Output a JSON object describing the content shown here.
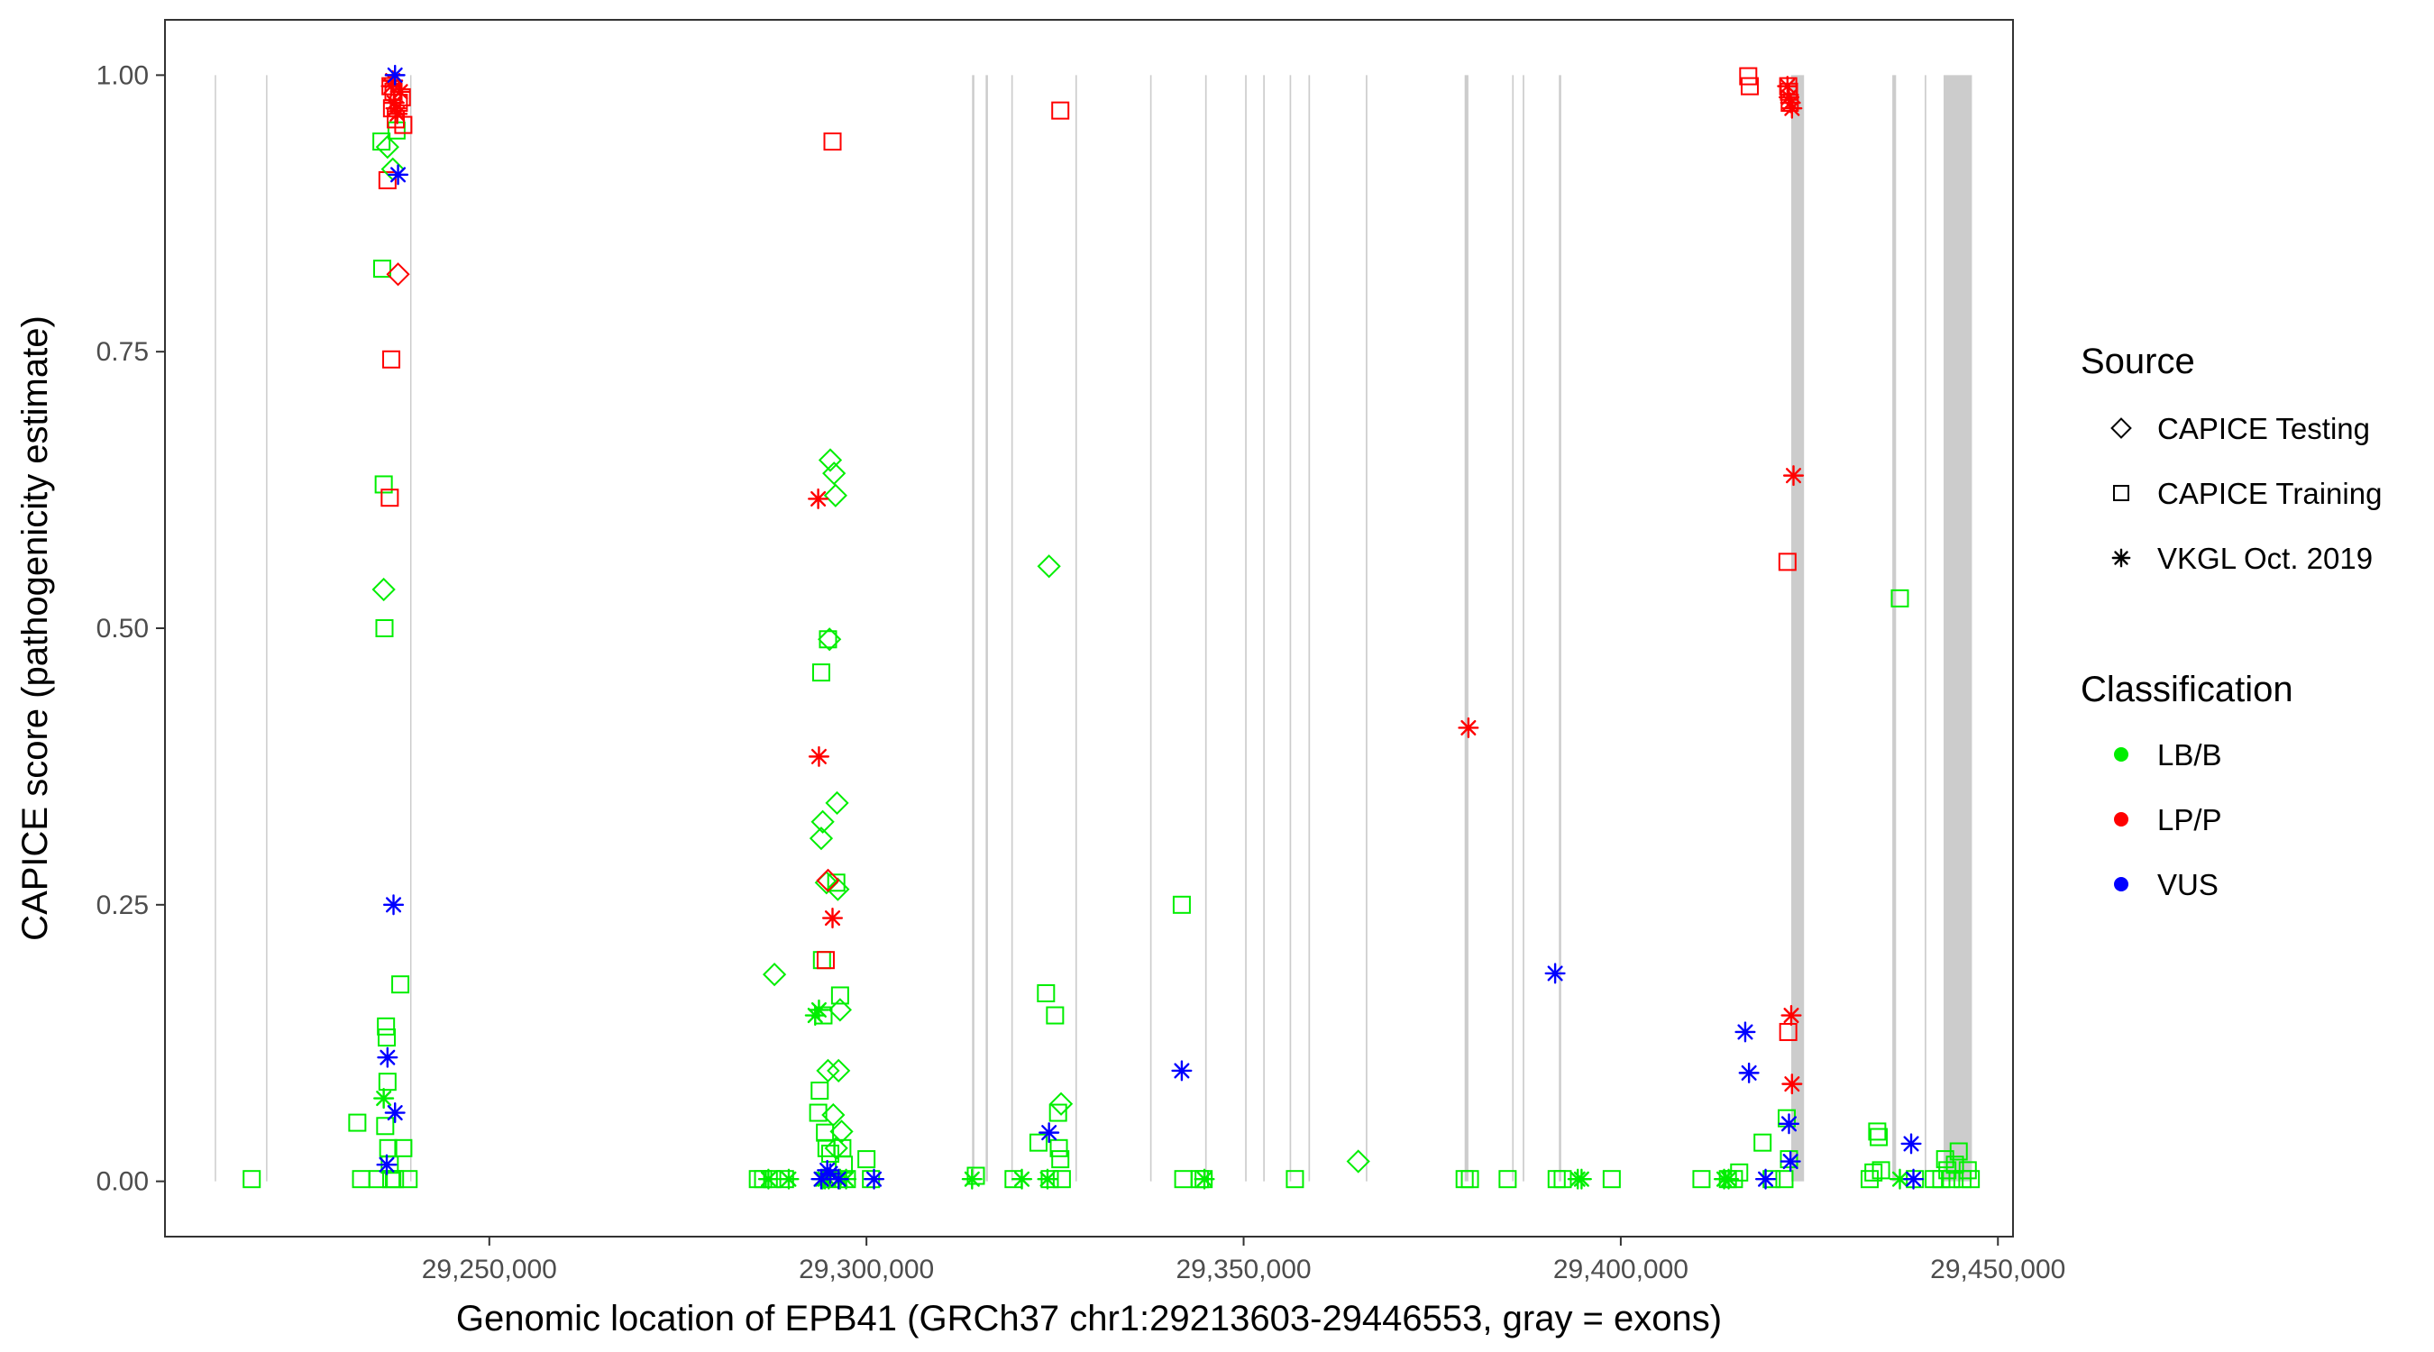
{
  "chart_data": {
    "type": "scatter",
    "xlabel": "Genomic location of EPB41 (GRCh37 chr1:29213603-29446553, gray = exons)",
    "ylabel": "CAPICE score (pathogenicity estimate)",
    "xlim": [
      29207000,
      29452000
    ],
    "ylim": [
      -0.05,
      1.05
    ],
    "x_ticks": [
      29250000,
      29300000,
      29350000,
      29400000,
      29450000
    ],
    "x_tick_labels": [
      "29,250,000",
      "29,300,000",
      "29,350,000",
      "29,400,000",
      "29,450,000"
    ],
    "y_ticks": [
      0,
      0.25,
      0.5,
      0.75,
      1.0
    ],
    "y_tick_labels": [
      "0.00",
      "0.25",
      "0.50",
      "0.75",
      "1.00"
    ],
    "grid": false,
    "legend_position": "right",
    "exon_color": "#cccccc",
    "exons": [
      [
        29213600,
        29213780
      ],
      [
        29220400,
        29220580
      ],
      [
        29239500,
        29239680
      ],
      [
        29314000,
        29314300
      ],
      [
        29315800,
        29316100
      ],
      [
        29319200,
        29319400
      ],
      [
        29327700,
        29327900
      ],
      [
        29337600,
        29337800
      ],
      [
        29344900,
        29345100
      ],
      [
        29350200,
        29350400
      ],
      [
        29352600,
        29352800
      ],
      [
        29356100,
        29356300
      ],
      [
        29358600,
        29358800
      ],
      [
        29366200,
        29366400
      ],
      [
        29379300,
        29379800
      ],
      [
        29385600,
        29385800
      ],
      [
        29387000,
        29387200
      ],
      [
        29391800,
        29392100
      ],
      [
        29422600,
        29424300
      ],
      [
        29436000,
        29436500
      ],
      [
        29440300,
        29440500
      ],
      [
        29442800,
        29446553
      ]
    ],
    "legend": {
      "source_title": "Source",
      "source_entries": [
        {
          "label": "CAPICE Testing",
          "shape": "diamond"
        },
        {
          "label": "CAPICE Training",
          "shape": "square"
        },
        {
          "label": "VKGL Oct. 2019",
          "shape": "asterisk"
        }
      ],
      "class_title": "Classification",
      "class_entries": [
        {
          "label": "LB/B",
          "color": "#00ee00"
        },
        {
          "label": "LP/P",
          "color": "#ff0000"
        },
        {
          "label": "VUS",
          "color": "#0000ff"
        }
      ]
    },
    "series": [
      {
        "shape": "square",
        "class": "LB/B",
        "points": [
          [
            29218500,
            0.002
          ],
          [
            29232500,
            0.053
          ],
          [
            29233000,
            0.002
          ],
          [
            29235200,
            0.002
          ],
          [
            29235700,
            0.94
          ],
          [
            29235800,
            0.825
          ],
          [
            29236000,
            0.63
          ],
          [
            29236100,
            0.5
          ],
          [
            29236300,
            0.14
          ],
          [
            29236400,
            0.13
          ],
          [
            29236500,
            0.09
          ],
          [
            29236200,
            0.05
          ],
          [
            29236600,
            0.03
          ],
          [
            29236800,
            0.015
          ],
          [
            29237000,
            0.002
          ],
          [
            29237500,
            0.002
          ],
          [
            29237700,
            0.95
          ],
          [
            29238200,
            0.178
          ],
          [
            29238600,
            0.03
          ],
          [
            29239300,
            0.002
          ],
          [
            29285600,
            0.002
          ],
          [
            29286300,
            0.002
          ],
          [
            29287500,
            0.002
          ],
          [
            29289200,
            0.002
          ],
          [
            29293600,
            0.062
          ],
          [
            29293800,
            0.082
          ],
          [
            29294000,
            0.46
          ],
          [
            29294100,
            0.2
          ],
          [
            29294300,
            0.15
          ],
          [
            29294500,
            0.044
          ],
          [
            29294700,
            0.03
          ],
          [
            29294900,
            0.49
          ],
          [
            29295200,
            0.025
          ],
          [
            29295500,
            0.002
          ],
          [
            29296000,
            0.27
          ],
          [
            29296500,
            0.168
          ],
          [
            29296800,
            0.03
          ],
          [
            29297000,
            0.015
          ],
          [
            29297400,
            0.002
          ],
          [
            29300000,
            0.02
          ],
          [
            29300600,
            0.002
          ],
          [
            29314500,
            0.005
          ],
          [
            29319500,
            0.002
          ],
          [
            29322800,
            0.035
          ],
          [
            29323800,
            0.17
          ],
          [
            29324300,
            0.002
          ],
          [
            29325000,
            0.15
          ],
          [
            29325400,
            0.062
          ],
          [
            29325500,
            0.03
          ],
          [
            29325700,
            0.02
          ],
          [
            29325900,
            0.002
          ],
          [
            29341800,
            0.25
          ],
          [
            29342000,
            0.002
          ],
          [
            29344200,
            0.002
          ],
          [
            29344700,
            0.002
          ],
          [
            29356800,
            0.002
          ],
          [
            29379300,
            0.002
          ],
          [
            29380000,
            0.002
          ],
          [
            29385000,
            0.002
          ],
          [
            29391500,
            0.002
          ],
          [
            29392300,
            0.002
          ],
          [
            29398800,
            0.002
          ],
          [
            29410700,
            0.002
          ],
          [
            29414200,
            0.002
          ],
          [
            29415000,
            0.002
          ],
          [
            29415700,
            0.008
          ],
          [
            29418800,
            0.035
          ],
          [
            29420000,
            0.002
          ],
          [
            29421700,
            0.002
          ],
          [
            29422000,
            0.057
          ],
          [
            29422300,
            0.02
          ],
          [
            29433000,
            0.002
          ],
          [
            29433500,
            0.008
          ],
          [
            29434000,
            0.045
          ],
          [
            29434200,
            0.04
          ],
          [
            29434500,
            0.01
          ],
          [
            29437000,
            0.527
          ],
          [
            29439000,
            0.002
          ],
          [
            29441500,
            0.002
          ],
          [
            29442500,
            0.002
          ],
          [
            29443000,
            0.02
          ],
          [
            29443300,
            0.01
          ],
          [
            29443800,
            0.002
          ],
          [
            29444300,
            0.015
          ],
          [
            29444800,
            0.027
          ],
          [
            29445300,
            0.002
          ],
          [
            29446000,
            0.01
          ],
          [
            29446400,
            0.002
          ]
        ]
      },
      {
        "shape": "square",
        "class": "LP/P",
        "points": [
          [
            29236500,
            0.905
          ],
          [
            29236800,
            0.618
          ],
          [
            29237000,
            0.743
          ],
          [
            29236900,
            0.99
          ],
          [
            29237100,
            0.97
          ],
          [
            29237300,
            0.985
          ],
          [
            29237600,
            0.96
          ],
          [
            29238000,
            0.975
          ],
          [
            29238400,
            0.98
          ],
          [
            29238600,
            0.955
          ],
          [
            29295500,
            0.94
          ],
          [
            29294600,
            0.2
          ],
          [
            29325700,
            0.968
          ],
          [
            29416900,
            0.999
          ],
          [
            29417100,
            0.99
          ],
          [
            29422200,
            0.99
          ],
          [
            29422300,
            0.985
          ],
          [
            29422400,
            0.975
          ],
          [
            29422100,
            0.56
          ],
          [
            29422200,
            0.135
          ]
        ]
      },
      {
        "shape": "diamond",
        "class": "LB/B",
        "points": [
          [
            29236000,
            0.535
          ],
          [
            29236500,
            0.935
          ],
          [
            29237200,
            0.915
          ],
          [
            29287800,
            0.187
          ],
          [
            29294200,
            0.325
          ],
          [
            29294000,
            0.31
          ],
          [
            29294700,
            0.27
          ],
          [
            29294900,
            0.1
          ],
          [
            29295100,
            0.49
          ],
          [
            29295200,
            0.652
          ],
          [
            29295600,
            0.06
          ],
          [
            29295700,
            0.64
          ],
          [
            29295900,
            0.62
          ],
          [
            29296000,
            0.03
          ],
          [
            29296100,
            0.342
          ],
          [
            29296200,
            0.264
          ],
          [
            29296300,
            0.1
          ],
          [
            29296500,
            0.155
          ],
          [
            29296700,
            0.045
          ],
          [
            29324200,
            0.556
          ],
          [
            29325800,
            0.07
          ],
          [
            29365200,
            0.018
          ]
        ]
      },
      {
        "shape": "diamond",
        "class": "LP/P",
        "points": [
          [
            29237900,
            0.82
          ],
          [
            29294900,
            0.272
          ]
        ]
      },
      {
        "shape": "asterisk",
        "class": "LB/B",
        "points": [
          [
            29236000,
            0.075
          ],
          [
            29293200,
            0.15
          ],
          [
            29293700,
            0.155
          ],
          [
            29287000,
            0.002
          ],
          [
            29289700,
            0.002
          ],
          [
            29294200,
            0.002
          ],
          [
            29294500,
            0.002
          ],
          [
            29295000,
            0.002
          ],
          [
            29296500,
            0.002
          ],
          [
            29297300,
            0.002
          ],
          [
            29314000,
            0.002
          ],
          [
            29320600,
            0.002
          ],
          [
            29324000,
            0.002
          ],
          [
            29344800,
            0.002
          ],
          [
            29394300,
            0.002
          ],
          [
            29394800,
            0.002
          ],
          [
            29413700,
            0.002
          ],
          [
            29414300,
            0.002
          ],
          [
            29437000,
            0.002
          ]
        ]
      },
      {
        "shape": "asterisk",
        "class": "LP/P",
        "points": [
          [
            29237000,
            0.99
          ],
          [
            29237200,
            0.995
          ],
          [
            29237400,
            0.975
          ],
          [
            29237600,
            0.97
          ],
          [
            29237800,
            0.965
          ],
          [
            29238200,
            0.985
          ],
          [
            29293600,
            0.617
          ],
          [
            29293700,
            0.384
          ],
          [
            29295500,
            0.238
          ],
          [
            29379800,
            0.41
          ],
          [
            29422100,
            0.99
          ],
          [
            29422300,
            0.98
          ],
          [
            29422500,
            0.975
          ],
          [
            29422700,
            0.97
          ],
          [
            29422900,
            0.638
          ],
          [
            29422600,
            0.15
          ],
          [
            29422700,
            0.088
          ]
        ]
      },
      {
        "shape": "asterisk",
        "class": "VUS",
        "points": [
          [
            29237500,
            1.0
          ],
          [
            29237300,
            0.25
          ],
          [
            29236500,
            0.112
          ],
          [
            29237500,
            0.062
          ],
          [
            29236400,
            0.015
          ],
          [
            29237900,
            0.91
          ],
          [
            29294000,
            0.002
          ],
          [
            29294800,
            0.01
          ],
          [
            29295200,
            0.007
          ],
          [
            29296300,
            0.002
          ],
          [
            29301000,
            0.002
          ],
          [
            29324200,
            0.044
          ],
          [
            29341800,
            0.1
          ],
          [
            29391300,
            0.188
          ],
          [
            29416500,
            0.135
          ],
          [
            29417000,
            0.098
          ],
          [
            29419200,
            0.002
          ],
          [
            29422300,
            0.052
          ],
          [
            29422500,
            0.018
          ],
          [
            29438500,
            0.034
          ],
          [
            29438800,
            0.002
          ]
        ]
      }
    ]
  }
}
